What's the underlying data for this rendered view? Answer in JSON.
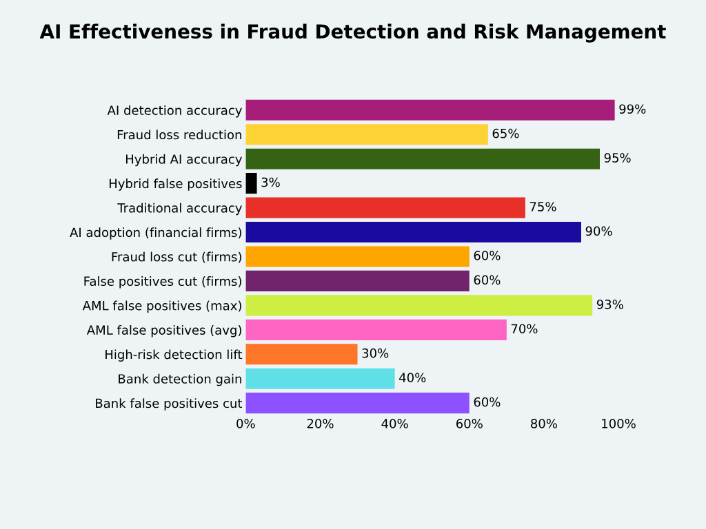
{
  "chart_data": {
    "type": "bar",
    "orientation": "horizontal",
    "title": "AI Effectiveness in Fraud Detection and Risk Management",
    "categories": [
      "AI detection accuracy",
      "Fraud loss reduction",
      "Hybrid AI accuracy",
      "Hybrid false positives",
      "Traditional accuracy",
      "AI adoption (financial firms)",
      "Fraud loss cut (firms)",
      "False positives cut (firms)",
      "AML false positives (max)",
      "AML false positives (avg)",
      "High-risk detection lift",
      "Bank detection gain",
      "Bank false positives cut"
    ],
    "values": [
      99,
      65,
      95,
      3,
      75,
      90,
      60,
      60,
      93,
      70,
      30,
      40,
      60
    ],
    "value_labels": [
      "99%",
      "65%",
      "95%",
      "3%",
      "75%",
      "90%",
      "60%",
      "60%",
      "93%",
      "70%",
      "30%",
      "40%",
      "60%"
    ],
    "colors": [
      "#a61e7a",
      "#fdd235",
      "#356313",
      "#000000",
      "#e8302a",
      "#1a0aa0",
      "#fea500",
      "#71246b",
      "#cdee42",
      "#ff65c3",
      "#fe7627",
      "#5ee0e6",
      "#8c52ff"
    ],
    "xlim": [
      0,
      100
    ],
    "xticks": [
      {
        "value": 0,
        "label": "0%"
      },
      {
        "value": 20,
        "label": "20%"
      },
      {
        "value": 40,
        "label": "40%"
      },
      {
        "value": 60,
        "label": "60%"
      },
      {
        "value": 80,
        "label": "80%"
      },
      {
        "value": 100,
        "label": "100%"
      }
    ],
    "grid": false,
    "legend": false
  }
}
